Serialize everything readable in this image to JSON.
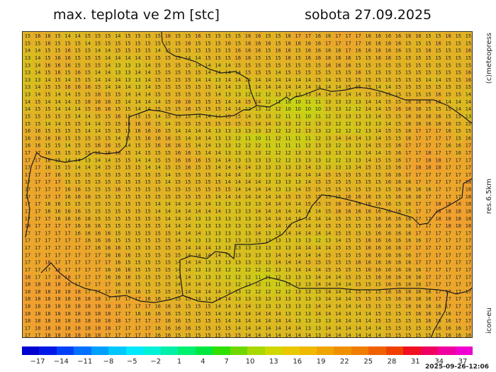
{
  "header": {
    "title": "max. teplota ve 2m [stc]",
    "date": "sobota 27.09.2025"
  },
  "side_labels": {
    "credit": "(c)meteopress",
    "resolution": "res.6.5km",
    "model": "icon-eu"
  },
  "colorbar": {
    "ticks": [
      "−17",
      "−14",
      "−11",
      "−8",
      "−5",
      "−2",
      "1",
      "4",
      "7",
      "10",
      "13",
      "16",
      "19",
      "22",
      "25",
      "28",
      "31",
      "34",
      "37"
    ],
    "colors": [
      "#0000d0",
      "#0018e8",
      "#0040f8",
      "#0070ff",
      "#00a0ff",
      "#00c8ff",
      "#00e8ff",
      "#00f0d8",
      "#00f0a8",
      "#00f070",
      "#00e840",
      "#30e000",
      "#70d800",
      "#a8d800",
      "#d0d800",
      "#e8c800",
      "#f0b800",
      "#f0a400",
      "#f09000",
      "#f07c00",
      "#f06000",
      "#f04000",
      "#f01020",
      "#f00060",
      "#f000a0",
      "#f000d0"
    ]
  },
  "run_timestamp": "2025-09-26-12:06",
  "map": {
    "grid": [
      "15 16 16 15 14 14 15 15 15 14 15 15 15 15 16 15 15 16 15 15 15 15 16 16 15 15 16 17 17 16 16 17 17 17 16 16 16 16 16 16 15 15 16 15 15",
      "15 15 16 15 15 15 14 15 15 15 15 15 15 15 15 15 16 15 15 15 16 15 16 16 16 15 16 16 16 16 17 17 17 17 16 16 16 16 15 15 15 16 15 15 15",
      "14 14 15 15 16 15 15 14 14 15 15 15 15 14 15 15 15 15 15 15 15 16 16 16 15 16 16 15 16 16 16 16 17 16 16 16 16 16 15 15 16 15 15 15 16",
      "13 14 15 16 16 15 15 15 14 14 14 14 15 15 15 15 14 14 15 15 15 16 16 15 15 15 16 15 16 16 16 16 16 15 15 16 16 15 15 15 15 15 15 15 15",
      "13 14 16 16 16 15 15 15 14 13 13 13 14 15 15 15 15 14 14 14 14 15 15 15 15 15 15 15 15 15 16 16 16 15 15 15 15 15 15 15 15 15 15 15 15",
      "13 14 15 16 15 16 15 14 14 13 13 14 14 15 15 15 15 15 14 14 14 14 15 15 15 14 15 15 15 15 15 15 15 16 15 15 15 15 15 15 15 15 15 15 16",
      "13 13 14 15 14 15 15 14 14 14 13 13 14 15 15 15 15 14 14 13 14 14 14 14 14 14 14 14 14 15 14 15 15 15 15 15 15 15 15 15 14 14 15 15 16",
      "13 14 15 15 16 16 16 15 14 14 14 13 14 15 15 15 15 15 15 14 14 13 13 14 14 14 14 14 14 14 14 14 15 15 15 14 14 15 15 15 15 15 15 15 15",
      "13 14 15 14 14 15 15 16 15 15 14 14 14 15 15 15 15 15 15 14 13 13 12 12 12 13 13 13 13 14 14 14 14 14 15 15 15 15 15 15 15 16 15 15 14",
      "14 15 14 14 14 15 16 16 16 15 14 14 14 14 15 16 16 15 15 15 14 14 15 14 12 11 10 10 11 11 13 13 13 13 14 14 15 15 16 16 16 16 14 14 14",
      "14 15 15 14 14 14 15 16 16 15 15 14 14 15 15 15 16 15 15 15 14 14 13 13 12 12 10 10 10 10 13 13 12 12 14 14 15 16 16 16 15 15 15 14 14",
      "15 15 15 15 15 14 14 15 15 16 15 15 15 14 15 15 15 14 14 14 15 15 14 13 13 12 11 11 10 11 12 13 13 13 13 14 15 15 16 16 16 16 15 15 13",
      "15 15 14 14 15 15 14 14 15 15 16 16 16 15 14 15 15 15 15 15 15 15 15 14 14 13 13 12 12 13 13 12 12 13 13 13 14 15 16 16 16 16 16 15 15",
      "16 16 15 15 15 15 14 14 15 15 15 16 16 16 15 14 14 14 14 13 13 13 13 13 13 12 12 12 13 13 12 12 12 12 13 14 15 15 16 17 17 17 16 15 15",
      "16 16 16 16 15 15 15 15 15 14 15 15 16 16 16 15 14 14 14 13 13 12 11 10 11 12 11 11 11 12 13 14 14 14 13 14 15 15 16 17 17 17 17 15 16",
      "16 16 15 15 14 15 15 16 16 15 14 15 15 16 16 16 15 14 14 13 13 12 12 12 11 11 11 11 12 13 13 12 13 13 14 15 15 16 17 17 17 17 16 16 17",
      "17 17 16 15 15 15 15 15 16 16 15 14 15 15 15 16 16 15 14 14 13 13 13 13 12 12 12 13 13 13 13 13 13 13 14 14 15 16 17 17 18 17 17 16 17",
      "17 17 16 15 14 14 13 14 14 15 15 14 14 15 15 16 16 16 15 14 14 13 13 13 13 12 12 13 13 13 12 12 13 13 14 15 15 16 17 17 18 18 17 17 17",
      "17 17 16 15 15 14 14 14 15 15 15 15 14 14 15 15 16 15 15 14 14 14 14 13 13 13 13 13 14 13 13 13 13 14 15 15 15 16 17 18 18 18 17 17 17",
      "17 17 17 16 15 15 15 15 15 15 15 15 15 15 14 15 15 15 15 14 14 14 13 13 13 13 14 14 14 14 15 15 15 15 15 15 16 16 17 17 17 17 17 17 17",
      "17 17 17 17 15 15 15 15 15 15 15 15 15 15 14 15 15 15 15 15 14 14 14 14 13 13 13 13 14 15 15 15 15 15 15 15 16 16 16 17 17 17 17 17 18",
      "17 17 17 17 16 16 15 15 15 16 15 15 15 15 15 15 15 15 15 15 15 14 14 14 14 13 13 14 15 15 15 15 15 15 15 15 15 16 16 16 16 17 17 17 18",
      "17 17 17 17 16 16 16 15 15 15 15 15 15 15 15 15 15 15 15 14 14 14 14 14 14 14 15 15 15 15 15 15 16 16 16 15 15 16 16 16 17 17 17 17 18",
      "17 17 16 16 15 15 15 15 15 15 15 15 15 14 14 14 14 14 14 13 13 13 13 13 14 14 14 14 15 15 15 16 16 16 16 16 16 15 16 17 17 18 18 18 18",
      "17 17 16 16 16 16 15 15 15 15 15 15 15 14 14 14 14 14 14 14 13 13 13 14 14 14 14 14 14 14 15 16 16 16 16 16 16 16 15 17 17 18 18 18 18",
      "17 17 17 16 16 16 16 15 15 15 15 15 15 15 14 14 14 13 13 13 13 13 13 13 14 14 14 14 14 14 14 15 15 15 15 16 16 16 16 17 17 18 18 18 18",
      "18 17 17 17 17 16 16 16 15 15 15 15 15 15 14 14 14 13 13 13 13 13 13 14 14 14 14 14 14 14 15 15 15 15 15 16 16 16 16 17 17 17 18 18 18",
      "17 17 17 17 17 16 16 16 16 15 15 15 15 15 15 14 14 14 13 13 13 13 13 14 13 13 14 14 14 14 14 15 15 15 15 16 16 16 16 17 17 17 17 17 17",
      "17 17 17 17 17 17 16 16 16 15 15 15 15 15 15 14 14 13 13 13 13 13 13 13 13 13 13 13 13 12 13 14 15 15 16 16 16 16 16 16 17 17 17 17 17",
      "17 17 17 17 17 17 17 16 16 16 15 15 15 15 15 15 14 14 14 13 13 13 13 13 13 13 13 14 14 14 14 15 15 15 16 16 16 16 17 17 17 17 17 17 17",
      "17 17 17 17 17 17 17 17 16 16 16 15 15 15 15 15 14 14 14 14 13 13 13 13 13 14 14 14 14 14 15 15 15 15 16 16 16 16 16 17 17 17 17 17 17",
      "17 17 18 17 17 17 17 17 17 16 15 15 15 15 15 14 14 14 13 13 13 13 13 13 13 14 14 14 15 15 15 15 15 16 16 16 16 16 16 17 17 17 17 17 17",
      "17 17 17 18 17 17 17 17 16 16 16 15 15 15 15 14 14 13 13 13 12 12 12 12 12 13 13 14 14 14 15 15 15 15 16 16 16 16 16 16 17 17 17 17 17",
      "18 17 17 18 18 17 17 17 16 16 16 15 15 15 15 14 14 13 13 13 12 12 12 11 11 12 13 13 13 14 14 14 15 15 15 16 16 16 16 16 17 17 17 17 17",
      "18 18 18 18 18 17 17 17 17 16 16 15 15 15 15 14 14 14 14 13 13 12 12 12 11 11 12 13 13 14 14 14 14 15 15 15 16 16 16 16 17 17 17 17 17",
      "18 18 18 18 18 18 17 17 17 16 16 16 15 15 15 15 14 14 14 14 13 13 12 12 12 12 12 13 13 13 14 14 14 15 15 15 16 16 16 16 16 17 17 17 17",
      "18 18 18 18 18 18 18 18 17 17 17 17 16 16 15 15 15 14 14 14 14 13 13 13 13 13 13 13 13 13 14 14 14 15 15 15 15 16 16 16 16 17 17 17 17",
      "18 18 18 18 18 18 18 18 18 18 17 17 17 16 16 16 15 15 15 14 14 14 14 13 13 13 13 13 13 14 14 14 14 14 15 15 15 15 16 16 16 16 17 17 17",
      "18 18 18 18 18 18 18 18 18 17 17 16 16 16 16 15 15 15 15 14 14 14 14 14 14 14 13 13 13 14 14 14 14 14 14 15 15 15 15 16 16 16 16 17 17",
      "18 18 18 18 18 18 18 18 18 18 17 17 17 17 16 16 15 15 15 15 14 14 14 14 14 14 14 13 13 13 13 14 14 14 14 15 15 15 15 15 16 16 16 17 17",
      "17 18 18 18 18 18 18 18 18 17 17 17 17 16 16 16 16 15 15 15 15 14 14 14 14 14 14 14 13 13 14 14 14 14 14 14 15 15 15 15 15 16 16 16 17",
      "17 17 18 18 18 18 18 18 17 17 17 17 17 16 16 15 15 15 15 15 15 15 14 14 14 14 14 14 14 13 14 14 14 14 14 14 15 15 15 15 15 15 16 16 16"
    ]
  }
}
